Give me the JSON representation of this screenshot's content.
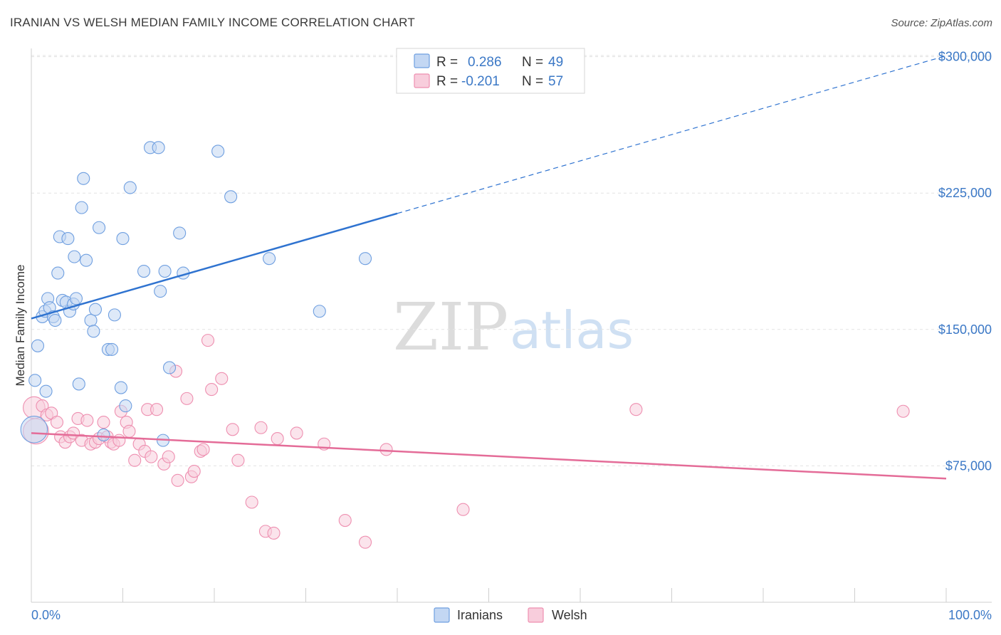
{
  "title": "IRANIAN VS WELSH MEDIAN FAMILY INCOME CORRELATION CHART",
  "source": "Source: ZipAtlas.com",
  "watermark": {
    "zip": "ZIP",
    "atlas": "atlas"
  },
  "colors": {
    "iranians": "#6f9fe0",
    "iranians_fill": "#c3d7f3",
    "iranians_line": "#2f73d0",
    "welsh": "#ee8fb0",
    "welsh_fill": "#f8cddc",
    "welsh_line": "#e46c98",
    "grid": "#e3e3e3",
    "axis_text": "#3b78c6"
  },
  "legend": {
    "rows": [
      {
        "r_label": "R =",
        "r_value": "0.286",
        "n_label": "N =",
        "n_value": "49"
      },
      {
        "r_label": "R =",
        "r_value": "-0.201",
        "n_label": "N =",
        "n_value": "57"
      }
    ]
  },
  "bottom_legend": [
    "Iranians",
    "Welsh"
  ],
  "chart_data": {
    "type": "scatter",
    "title": "IRANIAN VS WELSH MEDIAN FAMILY INCOME CORRELATION CHART",
    "xlabel": "",
    "ylabel": "Median Family Income",
    "xlim": [
      0,
      100
    ],
    "ylim": [
      0,
      310000
    ],
    "x_tick_labels": [
      "0.0%",
      "100.0%"
    ],
    "y_ticks": [
      75000,
      150000,
      225000,
      300000
    ],
    "y_tick_labels": [
      "$75,000",
      "$150,000",
      "$225,000",
      "$300,000"
    ],
    "grid": true,
    "legend_position": "top-center",
    "series": [
      {
        "name": "Iranians",
        "r": 0.286,
        "n": 49,
        "trend": {
          "x0": 0,
          "y0": 156000,
          "x_solid_end": 40,
          "x1": 100,
          "y1": 300500
        },
        "points": [
          {
            "x": 0.4,
            "y": 122000,
            "s": 1
          },
          {
            "x": 0.7,
            "y": 141000,
            "s": 1
          },
          {
            "x": 0.3,
            "y": 95000,
            "s": 2.2
          },
          {
            "x": 1.2,
            "y": 157000,
            "s": 1
          },
          {
            "x": 1.5,
            "y": 160000,
            "s": 1
          },
          {
            "x": 1.6,
            "y": 116000,
            "s": 1
          },
          {
            "x": 1.8,
            "y": 167000,
            "s": 1
          },
          {
            "x": 2.0,
            "y": 162000,
            "s": 1
          },
          {
            "x": 2.4,
            "y": 157000,
            "s": 1
          },
          {
            "x": 2.6,
            "y": 155000,
            "s": 1
          },
          {
            "x": 2.9,
            "y": 181000,
            "s": 1
          },
          {
            "x": 3.1,
            "y": 201000,
            "s": 1
          },
          {
            "x": 3.4,
            "y": 166000,
            "s": 1
          },
          {
            "x": 3.8,
            "y": 165000,
            "s": 1
          },
          {
            "x": 4.0,
            "y": 200000,
            "s": 1
          },
          {
            "x": 4.2,
            "y": 160000,
            "s": 1
          },
          {
            "x": 4.6,
            "y": 164000,
            "s": 1
          },
          {
            "x": 4.7,
            "y": 190000,
            "s": 1
          },
          {
            "x": 4.9,
            "y": 167000,
            "s": 1
          },
          {
            "x": 5.2,
            "y": 120000,
            "s": 1
          },
          {
            "x": 5.5,
            "y": 217000,
            "s": 1
          },
          {
            "x": 5.7,
            "y": 233000,
            "s": 1
          },
          {
            "x": 6.0,
            "y": 188000,
            "s": 1
          },
          {
            "x": 6.5,
            "y": 155000,
            "s": 1
          },
          {
            "x": 6.8,
            "y": 149000,
            "s": 1
          },
          {
            "x": 7.0,
            "y": 161000,
            "s": 1
          },
          {
            "x": 7.4,
            "y": 206000,
            "s": 1
          },
          {
            "x": 7.9,
            "y": 92000,
            "s": 1
          },
          {
            "x": 8.4,
            "y": 139000,
            "s": 1
          },
          {
            "x": 8.8,
            "y": 139000,
            "s": 1
          },
          {
            "x": 9.1,
            "y": 158000,
            "s": 1
          },
          {
            "x": 9.8,
            "y": 118000,
            "s": 1
          },
          {
            "x": 10.0,
            "y": 200000,
            "s": 1
          },
          {
            "x": 10.3,
            "y": 108000,
            "s": 1
          },
          {
            "x": 10.8,
            "y": 228000,
            "s": 1
          },
          {
            "x": 12.3,
            "y": 182000,
            "s": 1
          },
          {
            "x": 13.0,
            "y": 250000,
            "s": 1
          },
          {
            "x": 13.9,
            "y": 250000,
            "s": 1
          },
          {
            "x": 14.1,
            "y": 171000,
            "s": 1
          },
          {
            "x": 14.4,
            "y": 89000,
            "s": 1
          },
          {
            "x": 14.6,
            "y": 182000,
            "s": 1
          },
          {
            "x": 15.1,
            "y": 129000,
            "s": 1
          },
          {
            "x": 16.2,
            "y": 203000,
            "s": 1
          },
          {
            "x": 16.6,
            "y": 181000,
            "s": 1
          },
          {
            "x": 20.4,
            "y": 248000,
            "s": 1
          },
          {
            "x": 21.8,
            "y": 223000,
            "s": 1
          },
          {
            "x": 26.0,
            "y": 189000,
            "s": 1
          },
          {
            "x": 31.5,
            "y": 160000,
            "s": 1
          },
          {
            "x": 36.5,
            "y": 189000,
            "s": 1
          }
        ]
      },
      {
        "name": "Welsh",
        "r": -0.201,
        "n": 57,
        "trend": {
          "x0": 0,
          "y0": 93000,
          "x1": 100,
          "y1": 68000
        },
        "points": [
          {
            "x": 0.3,
            "y": 107000,
            "s": 1.8
          },
          {
            "x": 0.5,
            "y": 94000,
            "s": 2.1
          },
          {
            "x": 1.2,
            "y": 108000,
            "s": 1
          },
          {
            "x": 1.7,
            "y": 103000,
            "s": 1
          },
          {
            "x": 2.2,
            "y": 104000,
            "s": 1
          },
          {
            "x": 2.8,
            "y": 99000,
            "s": 1
          },
          {
            "x": 3.2,
            "y": 91000,
            "s": 1
          },
          {
            "x": 3.7,
            "y": 88000,
            "s": 1
          },
          {
            "x": 4.2,
            "y": 91000,
            "s": 1
          },
          {
            "x": 4.6,
            "y": 93000,
            "s": 1
          },
          {
            "x": 5.1,
            "y": 101000,
            "s": 1
          },
          {
            "x": 5.5,
            "y": 89000,
            "s": 1
          },
          {
            "x": 6.1,
            "y": 100000,
            "s": 1
          },
          {
            "x": 6.5,
            "y": 87000,
            "s": 1
          },
          {
            "x": 7.0,
            "y": 88000,
            "s": 1
          },
          {
            "x": 7.4,
            "y": 90000,
            "s": 1
          },
          {
            "x": 7.9,
            "y": 99000,
            "s": 1
          },
          {
            "x": 8.3,
            "y": 91000,
            "s": 1
          },
          {
            "x": 8.7,
            "y": 88000,
            "s": 1
          },
          {
            "x": 9.0,
            "y": 87000,
            "s": 1
          },
          {
            "x": 9.6,
            "y": 89000,
            "s": 1
          },
          {
            "x": 9.8,
            "y": 105000,
            "s": 1
          },
          {
            "x": 10.4,
            "y": 99000,
            "s": 1
          },
          {
            "x": 10.7,
            "y": 94000,
            "s": 1
          },
          {
            "x": 11.3,
            "y": 78000,
            "s": 1
          },
          {
            "x": 11.8,
            "y": 87000,
            "s": 1
          },
          {
            "x": 12.4,
            "y": 83000,
            "s": 1
          },
          {
            "x": 12.7,
            "y": 106000,
            "s": 1
          },
          {
            "x": 13.1,
            "y": 80000,
            "s": 1
          },
          {
            "x": 13.7,
            "y": 106000,
            "s": 1
          },
          {
            "x": 14.5,
            "y": 76000,
            "s": 1
          },
          {
            "x": 15.0,
            "y": 80000,
            "s": 1
          },
          {
            "x": 15.8,
            "y": 127000,
            "s": 1
          },
          {
            "x": 16.0,
            "y": 67000,
            "s": 1
          },
          {
            "x": 17.0,
            "y": 112000,
            "s": 1
          },
          {
            "x": 17.5,
            "y": 69000,
            "s": 1
          },
          {
            "x": 17.8,
            "y": 72000,
            "s": 1
          },
          {
            "x": 18.5,
            "y": 83000,
            "s": 1
          },
          {
            "x": 18.8,
            "y": 84000,
            "s": 1
          },
          {
            "x": 19.3,
            "y": 144000,
            "s": 1
          },
          {
            "x": 19.7,
            "y": 117000,
            "s": 1
          },
          {
            "x": 20.8,
            "y": 123000,
            "s": 1
          },
          {
            "x": 22.0,
            "y": 95000,
            "s": 1
          },
          {
            "x": 22.6,
            "y": 78000,
            "s": 1
          },
          {
            "x": 24.1,
            "y": 55000,
            "s": 1
          },
          {
            "x": 25.1,
            "y": 96000,
            "s": 1
          },
          {
            "x": 25.6,
            "y": 39000,
            "s": 1
          },
          {
            "x": 26.5,
            "y": 38000,
            "s": 1
          },
          {
            "x": 26.9,
            "y": 90000,
            "s": 1
          },
          {
            "x": 29.0,
            "y": 93000,
            "s": 1
          },
          {
            "x": 32.0,
            "y": 87000,
            "s": 1
          },
          {
            "x": 34.3,
            "y": 45000,
            "s": 1
          },
          {
            "x": 36.5,
            "y": 33000,
            "s": 1
          },
          {
            "x": 38.8,
            "y": 84000,
            "s": 1
          },
          {
            "x": 47.2,
            "y": 51000,
            "s": 1
          },
          {
            "x": 66.1,
            "y": 106000,
            "s": 1
          },
          {
            "x": 95.3,
            "y": 105000,
            "s": 1
          }
        ]
      }
    ]
  }
}
